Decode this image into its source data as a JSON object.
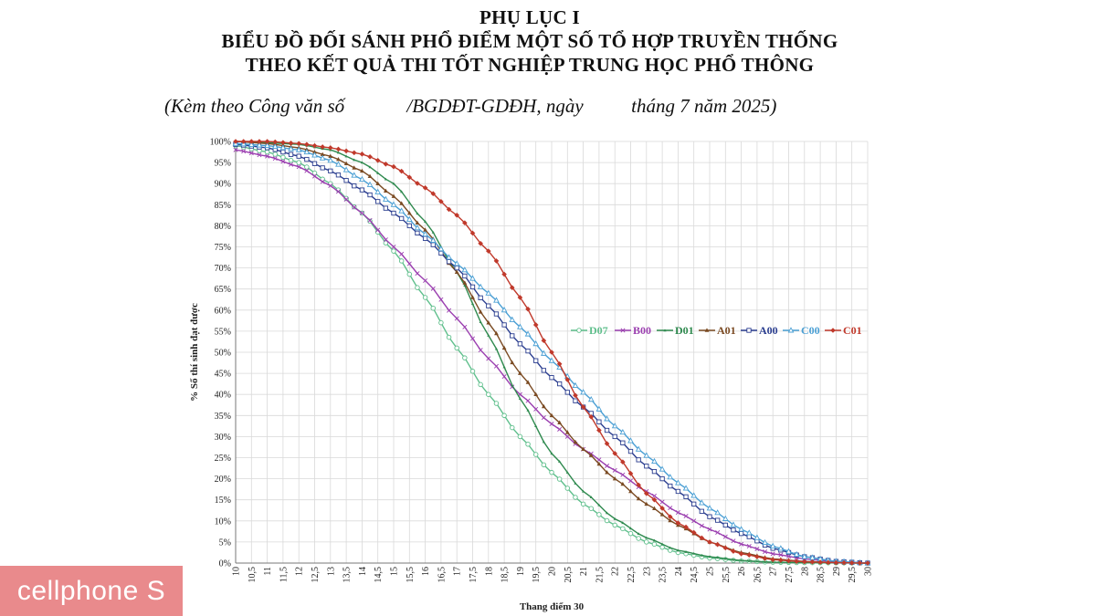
{
  "header": {
    "lines": [
      "PHỤ LỤC I",
      "BIỂU ĐỒ ĐỐI SÁNH PHỔ ĐIỂM MỘT SỐ TỔ HỢP TRUYỀN THỐNG",
      "THEO KẾT QUẢ THI TỐT NGHIỆP TRUNG HỌC PHỔ THÔNG"
    ],
    "subtitle": "(Kèm theo Công văn số             /BGDĐT-GDĐH, ngày          tháng 7 năm 2025)"
  },
  "watermark": {
    "text": "cellphone S",
    "color": "#e98a8c"
  },
  "chart_data": {
    "type": "line",
    "title": "",
    "xlabel": "Thang điểm 30",
    "ylabel": "% Số thí sinh đạt được",
    "xlim": [
      10,
      30
    ],
    "ylim": [
      0,
      100
    ],
    "x_step": 0.25,
    "grid": true,
    "legend_placement": "center-right",
    "x_ticks": [
      "10",
      "10,5",
      "11",
      "11,5",
      "12",
      "12,5",
      "13",
      "13,5",
      "14",
      "14,5",
      "15",
      "15,5",
      "16",
      "16,5",
      "17",
      "17,5",
      "18",
      "18,5",
      "19",
      "19,5",
      "20",
      "20,5",
      "21",
      "21,5",
      "22",
      "22,5",
      "23",
      "23,5",
      "24",
      "24,5",
      "25",
      "25,5",
      "26",
      "26,5",
      "27",
      "27,5",
      "28",
      "28,5",
      "29",
      "29,5",
      "30"
    ],
    "y_ticks": [
      "0%",
      "5%",
      "10%",
      "15%",
      "20%",
      "25%",
      "30%",
      "35%",
      "40%",
      "45%",
      "50%",
      "55%",
      "60%",
      "65%",
      "70%",
      "75%",
      "80%",
      "85%",
      "90%",
      "95%",
      "100%"
    ],
    "series": [
      {
        "name": "D07",
        "color": "#5fbf8c",
        "marker": "circle-open",
        "points": [
          [
            10,
            99
          ],
          [
            11,
            97.5
          ],
          [
            12,
            95
          ],
          [
            13,
            90
          ],
          [
            14,
            83
          ],
          [
            15,
            74
          ],
          [
            16,
            63
          ],
          [
            17,
            51
          ],
          [
            18,
            40
          ],
          [
            19,
            30
          ],
          [
            20,
            21.5
          ],
          [
            21,
            14
          ],
          [
            22,
            9
          ],
          [
            23,
            5
          ],
          [
            24,
            2.5
          ],
          [
            25,
            1.2
          ],
          [
            26,
            0.5
          ],
          [
            27,
            0.2
          ],
          [
            28,
            0.1
          ],
          [
            30,
            0
          ]
        ]
      },
      {
        "name": "B00",
        "color": "#9b3fb0",
        "marker": "cross",
        "points": [
          [
            10,
            98
          ],
          [
            11,
            96.5
          ],
          [
            12,
            94
          ],
          [
            13,
            89.5
          ],
          [
            14,
            83
          ],
          [
            15,
            75
          ],
          [
            16,
            67
          ],
          [
            17,
            58
          ],
          [
            18,
            48.5
          ],
          [
            19,
            40
          ],
          [
            20,
            33
          ],
          [
            21,
            27
          ],
          [
            22,
            22
          ],
          [
            23,
            17
          ],
          [
            24,
            12
          ],
          [
            25,
            8
          ],
          [
            26,
            4.5
          ],
          [
            27,
            2.2
          ],
          [
            28,
            1
          ],
          [
            29,
            0.3
          ],
          [
            30,
            0
          ]
        ]
      },
      {
        "name": "D01",
        "color": "#2f8a4f",
        "marker": "triangle-small",
        "points": [
          [
            10,
            100
          ],
          [
            11,
            99.7
          ],
          [
            12,
            99.3
          ],
          [
            13,
            98
          ],
          [
            14,
            95
          ],
          [
            15,
            90
          ],
          [
            16,
            81
          ],
          [
            17,
            69
          ],
          [
            18,
            54
          ],
          [
            19,
            39
          ],
          [
            20,
            26
          ],
          [
            21,
            17
          ],
          [
            22,
            10.5
          ],
          [
            23,
            6
          ],
          [
            24,
            3
          ],
          [
            25,
            1.5
          ],
          [
            26,
            0.6
          ],
          [
            27,
            0.2
          ],
          [
            28,
            0.1
          ],
          [
            30,
            0
          ]
        ]
      },
      {
        "name": "A01",
        "color": "#7a4a22",
        "marker": "triangle",
        "points": [
          [
            10,
            100
          ],
          [
            11,
            99.5
          ],
          [
            12,
            98.5
          ],
          [
            13,
            96.5
          ],
          [
            14,
            93
          ],
          [
            15,
            87
          ],
          [
            16,
            79
          ],
          [
            17,
            69
          ],
          [
            18,
            57
          ],
          [
            19,
            45
          ],
          [
            20,
            35
          ],
          [
            21,
            27
          ],
          [
            22,
            20
          ],
          [
            23,
            14
          ],
          [
            24,
            9
          ],
          [
            25,
            5
          ],
          [
            26,
            2.5
          ],
          [
            27,
            1
          ],
          [
            28,
            0.4
          ],
          [
            29,
            0.1
          ],
          [
            30,
            0
          ]
        ]
      },
      {
        "name": "A00",
        "color": "#2a3d8f",
        "marker": "square-open",
        "points": [
          [
            10,
            99.3
          ],
          [
            11,
            98.5
          ],
          [
            12,
            96.5
          ],
          [
            13,
            93
          ],
          [
            14,
            88.5
          ],
          [
            15,
            83
          ],
          [
            16,
            77
          ],
          [
            17,
            70
          ],
          [
            18,
            61
          ],
          [
            19,
            52
          ],
          [
            20,
            44
          ],
          [
            21,
            37
          ],
          [
            22,
            30
          ],
          [
            23,
            23
          ],
          [
            24,
            17
          ],
          [
            25,
            11
          ],
          [
            26,
            7
          ],
          [
            27,
            3.5
          ],
          [
            28,
            1.5
          ],
          [
            29,
            0.4
          ],
          [
            30,
            0
          ]
        ]
      },
      {
        "name": "C00",
        "color": "#4a9fd4",
        "marker": "triangle-open",
        "points": [
          [
            10,
            99.5
          ],
          [
            11,
            99
          ],
          [
            12,
            98
          ],
          [
            13,
            95.5
          ],
          [
            14,
            91
          ],
          [
            15,
            85
          ],
          [
            16,
            78
          ],
          [
            17,
            71
          ],
          [
            18,
            64
          ],
          [
            19,
            56
          ],
          [
            20,
            48
          ],
          [
            21,
            40.5
          ],
          [
            22,
            32.5
          ],
          [
            23,
            25.5
          ],
          [
            24,
            19
          ],
          [
            25,
            13
          ],
          [
            26,
            8
          ],
          [
            27,
            4
          ],
          [
            28,
            1.5
          ],
          [
            29,
            0.4
          ],
          [
            30,
            0
          ]
        ]
      },
      {
        "name": "C01",
        "color": "#c0392b",
        "marker": "diamond",
        "points": [
          [
            10,
            100
          ],
          [
            11,
            100
          ],
          [
            12,
            99.5
          ],
          [
            13,
            98.5
          ],
          [
            14,
            97
          ],
          [
            15,
            94
          ],
          [
            16,
            89
          ],
          [
            17,
            82.5
          ],
          [
            18,
            74
          ],
          [
            19,
            63
          ],
          [
            20,
            50
          ],
          [
            21,
            37
          ],
          [
            22,
            26
          ],
          [
            23,
            16.5
          ],
          [
            24,
            9.5
          ],
          [
            25,
            5
          ],
          [
            26,
            2.2
          ],
          [
            27,
            0.8
          ],
          [
            28,
            0.3
          ],
          [
            29,
            0.1
          ],
          [
            30,
            0
          ]
        ]
      }
    ]
  }
}
